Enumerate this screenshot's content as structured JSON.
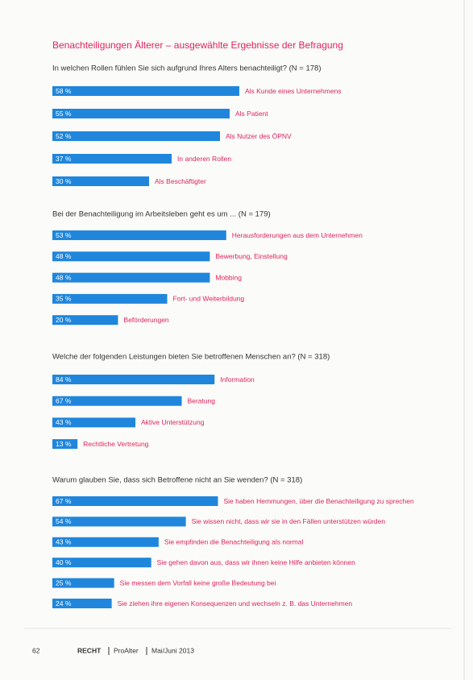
{
  "header": {
    "title": "Benachteiligungen Älterer – ausgewählte Ergebnisse der Befragung"
  },
  "chart_data": [
    {
      "type": "bar",
      "orientation": "horizontal",
      "title": "In welchen Rollen fühlen Sie sich aufgrund Ihres Alters benachteiligt? (N = 178)",
      "categories": [
        "Als Kunde eines Unternehmens",
        "Als Patient",
        "Als Nutzer des ÖPNV",
        "In anderen Rollen",
        "Als Beschäftigter"
      ],
      "values": [
        58,
        55,
        52,
        37,
        30
      ],
      "value_labels": [
        "58 %",
        "55 %",
        "52 %",
        "37 %",
        "30 %"
      ],
      "color": "#1f86dc",
      "xlim": [
        0,
        115
      ]
    },
    {
      "type": "bar",
      "orientation": "horizontal",
      "title": "Bei der Benachteiligung im Arbeitsleben geht es um ... (N = 179)",
      "categories": [
        "Herausforderungen aus dem Unternehmen",
        "Bewerbung, Einstellung",
        "Mobbing",
        "Fort- und Weiterbildung",
        "Beförderungen"
      ],
      "values": [
        53,
        48,
        48,
        35,
        20
      ],
      "value_labels": [
        "53 %",
        "48 %",
        "48 %",
        "35 %",
        "20 %"
      ],
      "color": "#1f86dc",
      "xlim": [
        0,
        113
      ]
    },
    {
      "type": "bar",
      "orientation": "horizontal",
      "title": "Welche der folgenden Leistungen bieten Sie betroffenen Menschen an? (N = 318)",
      "categories": [
        "Information",
        "Beratung",
        "Aktive Unterstützung",
        "Rechtliche Vertretung"
      ],
      "values": [
        84,
        67,
        43,
        13
      ],
      "value_labels": [
        "84 %",
        "67 %",
        "43 %",
        "13 %"
      ],
      "color": "#1f86dc",
      "xlim": [
        0,
        192
      ]
    },
    {
      "type": "bar",
      "orientation": "horizontal",
      "title": "Warum glauben Sie, dass sich Betroffene nicht an Sie wenden? (N = 318)",
      "categories": [
        "Sie haben Hemmungen, über die Benachteiligung zu sprechen",
        "Sie wissen nicht, dass wir sie in den Fällen unterstützen würden",
        "Sie empfinden die Benachteiligung als normal",
        "Sie gehen davon aus, dass wir ihnen keine Hilfe anbieten können",
        "Sie messen dem Vorfall keine große Bedeutung bei",
        "Sie ziehen ihre eigenen Konsequenzen und wechseln z. B. das Unternehmen"
      ],
      "values": [
        67,
        54,
        43,
        40,
        25,
        24
      ],
      "value_labels": [
        "67 %",
        "54 %",
        "43 %",
        "40 %",
        "25 %",
        "24 %"
      ],
      "color": "#1f86dc",
      "xlim": [
        0,
        150
      ]
    }
  ],
  "footer": {
    "page": "62",
    "section": "RECHT",
    "magazine": "ProAlter",
    "issue": "Mai/Juni 2013"
  }
}
